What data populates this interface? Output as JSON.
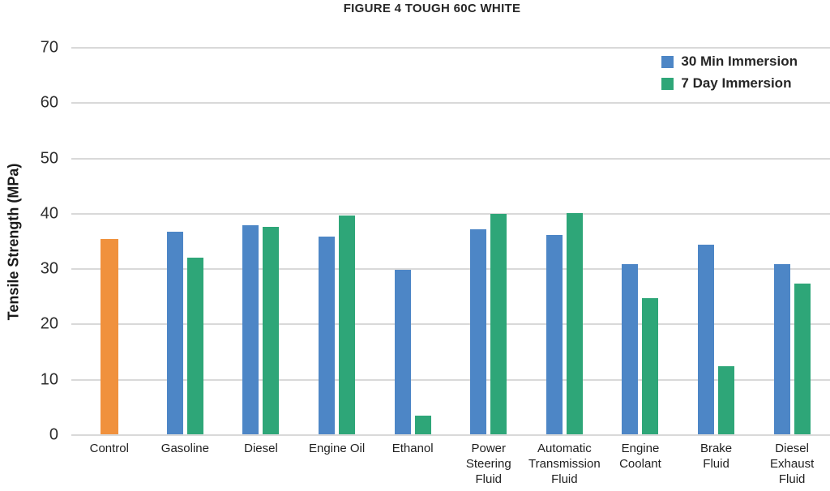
{
  "chart_data": {
    "type": "bar",
    "title": "FIGURE 4 TOUGH 60C WHITE",
    "ylabel": "Tensile Strength (MPa)",
    "xlabel": "",
    "ylim": [
      0,
      70
    ],
    "ytick_step": 10,
    "yticks": [
      0,
      10,
      20,
      30,
      40,
      50,
      60,
      70
    ],
    "grid": true,
    "gridline_color": "#d9d9d9",
    "background_color": "#ffffff",
    "legend": {
      "position": "top-right",
      "entries": [
        {
          "label": "30 Min Immersion",
          "color": "#4D86C6"
        },
        {
          "label": "7 Day Immersion",
          "color": "#2EA678"
        }
      ]
    },
    "categories": [
      {
        "name": "Control",
        "lines": [
          "Control"
        ]
      },
      {
        "name": "Gasoline",
        "lines": [
          "Gasoline"
        ]
      },
      {
        "name": "Diesel",
        "lines": [
          "Diesel"
        ]
      },
      {
        "name": "Engine Oil",
        "lines": [
          "Engine Oil"
        ]
      },
      {
        "name": "Ethanol",
        "lines": [
          "Ethanol"
        ]
      },
      {
        "name": "Power Steering Fluid",
        "lines": [
          "Power",
          "Steering",
          "Fluid"
        ]
      },
      {
        "name": "Automatic Transmission Fluid",
        "lines": [
          "Automatic",
          "Transmission",
          "Fluid"
        ]
      },
      {
        "name": "Engine Coolant",
        "lines": [
          "Engine",
          "Coolant"
        ]
      },
      {
        "name": "Brake Fluid",
        "lines": [
          "Brake",
          "Fluid"
        ]
      },
      {
        "name": "Diesel Exhaust Fluid",
        "lines": [
          "Diesel",
          "Exhaust",
          "Fluid"
        ]
      }
    ],
    "series": [
      {
        "name": "30 Min Immersion",
        "color": "#4D86C6",
        "values": [
          null,
          36.6,
          37.8,
          35.8,
          29.7,
          37.0,
          36.0,
          30.7,
          34.2,
          30.7
        ]
      },
      {
        "name": "7 Day Immersion",
        "color": "#2EA678",
        "values": [
          null,
          32.0,
          37.5,
          39.6,
          3.3,
          39.9,
          40.0,
          24.6,
          12.3,
          27.2
        ]
      }
    ],
    "single_bars": [
      {
        "category": "Control",
        "value": 35.3,
        "color": "#F0913D"
      }
    ]
  }
}
